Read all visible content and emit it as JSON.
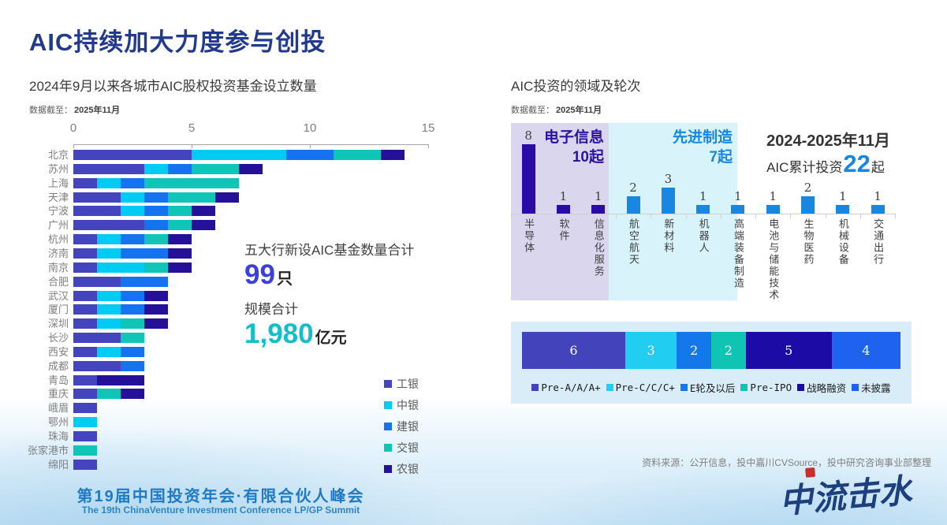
{
  "header": {
    "title": "AIC持续加大力度参与创投"
  },
  "left_chart": {
    "title": "2024年9月以来各城市AIC股权投资基金设立数量",
    "note_label": "数据截至：",
    "note_value": "2025年11月"
  },
  "annotation": {
    "funds_label": "五大行新设AIC基金数量合计",
    "funds_value": "99",
    "funds_unit": "只",
    "scale_label": "规模合计",
    "scale_value": "1,980",
    "scale_unit": "亿元"
  },
  "right_chart": {
    "title": "AIC投资的领域及轮次",
    "note_label": "数据截至：",
    "note_value": "2025年11月",
    "group1_label": "电子信息",
    "group1_count": "10起",
    "group2_label": "先进制造",
    "group2_count": "7起",
    "period": "2024-2025年11月",
    "total_label": "AIC累计投资",
    "total_value": "22",
    "total_unit": "起"
  },
  "source": "资料来源：公开信息，投中嘉川CVSource，投中研究咨询事业部整理",
  "footer": {
    "conference_cn": "第19届中国投资年会·有限合伙人峰会",
    "conference_en": "The 19th ChinaVenture Investment Conference LP/GP Summit",
    "logo_text": "中流击水"
  },
  "colors": {
    "title_navy": "#223a8d",
    "highlight_indigo": "#3c3fe0",
    "highlight_teal": "#12bec8",
    "highlight_blue": "#1787e2",
    "group1_text": "#2b12a0",
    "panel_lavender": "#d9d6ee",
    "panel_cyan": "#d8f3fa",
    "rounds_panel_bg": "#d9edf8",
    "footer_blue": "#1e7ac4",
    "seal_red": "#c5302c"
  },
  "chart_data": [
    {
      "type": "bar",
      "orientation": "horizontal",
      "stacked": true,
      "title": "2024年9月以来各城市AIC股权投资基金设立数量",
      "xlabel": "",
      "ylabel": "",
      "xlim": [
        0,
        15
      ],
      "xticks": [
        0,
        5,
        10,
        15
      ],
      "grid": false,
      "legend_position": "right-bottom",
      "categories": [
        "北京",
        "苏州",
        "上海",
        "天津",
        "宁波",
        "广州",
        "杭州",
        "济南",
        "南京",
        "合肥",
        "武汉",
        "厦门",
        "深圳",
        "长沙",
        "西安",
        "成都",
        "青岛",
        "重庆",
        "峨眉",
        "鄂州",
        "珠海",
        "张家港市",
        "绵阳"
      ],
      "totals": [
        14,
        8,
        7,
        7,
        6,
        6,
        5,
        5,
        5,
        4,
        4,
        4,
        4,
        3,
        3,
        3,
        3,
        3,
        1,
        1,
        1,
        1,
        1
      ],
      "series": [
        {
          "name": "工银",
          "color": "#4445be",
          "values": [
            5,
            3,
            1,
            2,
            2,
            3,
            1,
            1,
            1,
            2,
            1,
            1,
            1,
            2,
            1,
            2,
            1,
            1,
            1,
            0,
            1,
            0,
            1
          ]
        },
        {
          "name": "中银",
          "color": "#00cbf2",
          "values": [
            4,
            1,
            1,
            1,
            1,
            0,
            1,
            1,
            2,
            0,
            1,
            1,
            1,
            0,
            1,
            0,
            0,
            0,
            0,
            1,
            0,
            0,
            0
          ]
        },
        {
          "name": "建银",
          "color": "#1573f0",
          "values": [
            2,
            1,
            1,
            1,
            1,
            1,
            1,
            2,
            0,
            2,
            1,
            1,
            0,
            0,
            1,
            1,
            0,
            0,
            0,
            0,
            0,
            0,
            0
          ]
        },
        {
          "name": "交银",
          "color": "#0fc5b8",
          "values": [
            2,
            2,
            4,
            2,
            1,
            1,
            1,
            0,
            1,
            0,
            0,
            0,
            1,
            1,
            0,
            0,
            0,
            1,
            0,
            0,
            0,
            1,
            0
          ]
        },
        {
          "name": "农银",
          "color": "#241099",
          "values": [
            1,
            1,
            0,
            1,
            1,
            1,
            1,
            1,
            1,
            0,
            1,
            1,
            1,
            0,
            0,
            0,
            2,
            1,
            0,
            0,
            0,
            0,
            0
          ]
        }
      ]
    },
    {
      "type": "bar",
      "orientation": "vertical",
      "title": "AIC投资的领域及轮次",
      "ylim": [
        0,
        8
      ],
      "grid": false,
      "categories": [
        "半导体",
        "软件",
        "信息化服务",
        "航空航天",
        "新材料",
        "机器人",
        "高端装备制造",
        "电池与储能技术",
        "生物医药",
        "机械设备",
        "交通出行"
      ],
      "values": [
        8,
        1,
        1,
        2,
        3,
        1,
        1,
        1,
        2,
        1,
        1
      ],
      "bar_colors": [
        "#2b0ba5",
        "#2b0ba5",
        "#2b0ba5",
        "#1787e2",
        "#1787e2",
        "#1787e2",
        "#1787e2",
        "#1787e2",
        "#1787e2",
        "#1787e2",
        "#1787e2"
      ],
      "groups": [
        {
          "label": "电子信息",
          "count": 10,
          "category_span": [
            0,
            2
          ],
          "bg": "#d9d6ee"
        },
        {
          "label": "先进制造",
          "count": 7,
          "category_span": [
            3,
            6
          ],
          "bg": "#d8f3fa"
        }
      ],
      "total": 22
    },
    {
      "type": "bar",
      "orientation": "horizontal",
      "stacked": true,
      "title": "AIC投资轮次分布",
      "total": 22,
      "legend_position": "bottom",
      "series": [
        {
          "name": "Pre-A/A/A+",
          "value": 6,
          "color": "#4343bc"
        },
        {
          "name": "Pre-C/C/C+",
          "value": 3,
          "color": "#22cdf2"
        },
        {
          "name": "E轮及以后",
          "value": 2,
          "color": "#1478ea"
        },
        {
          "name": "Pre-IPO",
          "value": 2,
          "color": "#10c4b4"
        },
        {
          "name": "战略融资",
          "value": 5,
          "color": "#1c0ca5"
        },
        {
          "name": "未披露",
          "value": 4,
          "color": "#1e63f0"
        }
      ]
    }
  ]
}
